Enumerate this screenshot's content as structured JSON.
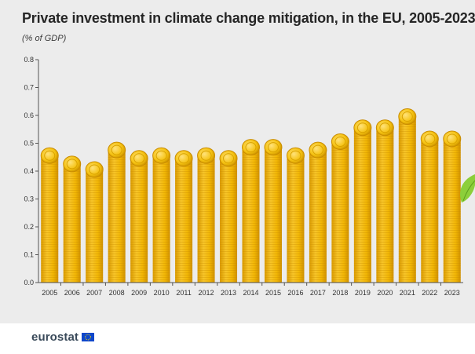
{
  "header": {
    "title": "Private investment in climate change mitigation, in the EU, 2005-2023",
    "subtitle": "(% of GDP)"
  },
  "footer": {
    "logo_text": "eurostat"
  },
  "colors": {
    "background": "#ececec",
    "bar": "#f2b705",
    "bar_dark": "#d99a00",
    "coin": "#f5c211",
    "axis": "#555555",
    "leaf": "#8ccf3a",
    "eu_blue": "#0e47cb",
    "eu_star": "#ffdd00"
  },
  "chart_data": {
    "type": "bar",
    "title": "Private investment in climate change mitigation, in the EU, 2005-2023",
    "subtitle": "(% of GDP)",
    "xlabel": "",
    "ylabel": "% of GDP",
    "ylim": [
      0,
      0.8
    ],
    "yticks": [
      "0.0",
      "0.1",
      "0.2",
      "0.3",
      "0.4",
      "0.5",
      "0.6",
      "0.7",
      "0.8"
    ],
    "grid": false,
    "categories": [
      "2005",
      "2006",
      "2007",
      "2008",
      "2009",
      "2010",
      "2011",
      "2012",
      "2013",
      "2014",
      "2015",
      "2016",
      "2017",
      "2018",
      "2019",
      "2020",
      "2021",
      "2022",
      "2023"
    ],
    "values": [
      0.45,
      0.42,
      0.4,
      0.47,
      0.44,
      0.45,
      0.44,
      0.45,
      0.44,
      0.48,
      0.48,
      0.45,
      0.47,
      0.5,
      0.55,
      0.55,
      0.59,
      0.51,
      0.51
    ]
  }
}
